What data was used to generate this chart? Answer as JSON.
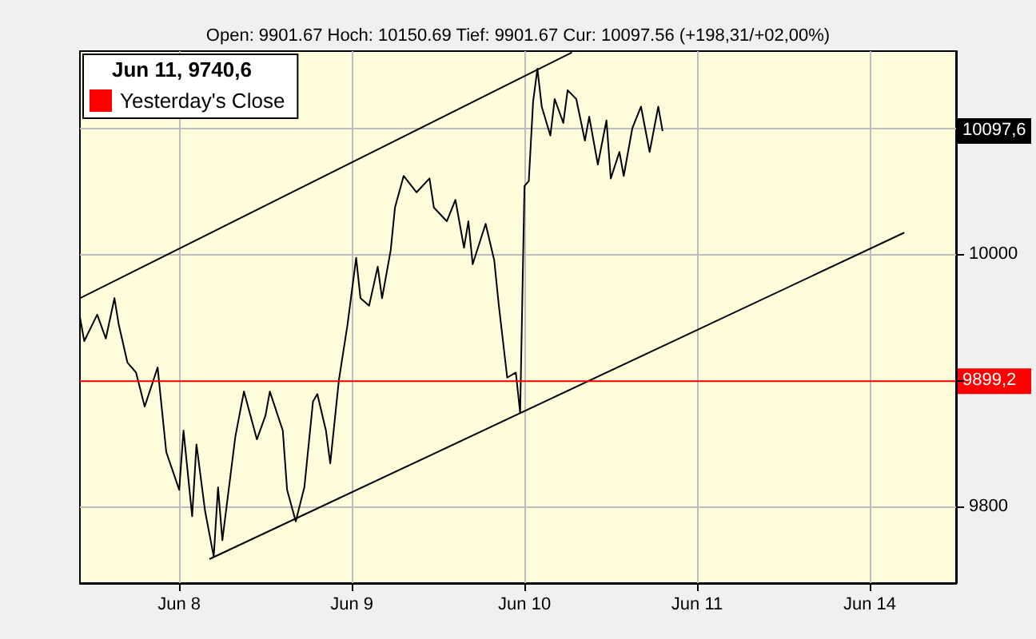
{
  "chart_data": {
    "type": "line",
    "title": "Open: 9901.67 Hoch: 10150.69 Tief: 9901.67 Cur: 10097.56 (+198,31/+02,00%)",
    "annotations": [
      "Jun 11, 9740,6",
      "10097,6",
      "9899,2"
    ],
    "categories": [
      null,
      null,
      null,
      null,
      null,
      null,
      null,
      null,
      null,
      null,
      null,
      null,
      null,
      null,
      null,
      null,
      null,
      null,
      null,
      null,
      null,
      null,
      null,
      "Jun 8",
      null,
      null,
      null,
      null,
      null,
      null,
      null,
      null,
      null,
      null,
      null,
      null,
      null,
      null,
      null,
      null,
      null,
      null,
      null,
      null,
      null,
      null,
      null,
      null,
      null,
      null,
      null,
      null,
      null,
      null,
      null,
      null,
      null,
      null,
      null,
      null,
      null,
      null,
      null,
      "Jun 9",
      null,
      null,
      null,
      null,
      null,
      null,
      null,
      null,
      null,
      null,
      null,
      null,
      null,
      null,
      null,
      null,
      null,
      null,
      null,
      null,
      null,
      null,
      null,
      null,
      null,
      null,
      null,
      null,
      null,
      null,
      null,
      null,
      null,
      null,
      null,
      null,
      null,
      null,
      null,
      "Jun 10",
      null,
      null,
      null,
      null,
      null,
      null,
      null,
      null,
      null,
      null,
      null,
      null,
      null,
      null,
      null,
      null,
      null,
      null,
      null,
      null,
      null,
      null,
      null,
      null,
      null,
      null,
      null,
      null,
      null,
      null,
      null,
      null,
      null,
      null,
      null,
      null,
      null,
      null,
      null,
      "Jun 11",
      null,
      null,
      null,
      null,
      null,
      null,
      null,
      null,
      null,
      null,
      null,
      null,
      null,
      null,
      null,
      null,
      null,
      null,
      null,
      null,
      null,
      null,
      null,
      null,
      null,
      null,
      null,
      null,
      null,
      null,
      null,
      null,
      null,
      null,
      null,
      null,
      null,
      null,
      null,
      "Jun 14",
      null,
      null,
      null,
      null,
      null,
      null,
      null,
      null,
      null,
      null,
      null,
      null,
      null,
      null,
      null,
      null,
      null,
      null,
      null,
      null
    ],
    "ylim": [
      9739,
      10161
    ],
    "yticks": [
      9800,
      {
        "value": 9900,
        "label": null
      },
      10000,
      {
        "value": 10100,
        "label": null
      }
    ],
    "grid": true,
    "legend": "top left",
    "marker": "none",
    "line_style": "solid",
    "series": [
      {
        "color": "#000000",
        "values": [
          9950,
          9931,
          null,
          null,
          9952,
          null,
          9933,
          null,
          9965,
          9944,
          null,
          9914,
          null,
          9906,
          null,
          9879,
          null,
          null,
          9910,
          null,
          9843,
          null,
          null,
          9813,
          9860,
          null,
          9792,
          9849,
          null,
          9796,
          null,
          9760,
          9815,
          9773,
          null,
          null,
          9855,
          null,
          9891,
          null,
          null,
          9853,
          null,
          9872,
          9891,
          null,
          null,
          9860,
          9813,
          null,
          9788,
          null,
          9815,
          null,
          9883,
          9889,
          null,
          9860,
          9834,
          null,
          9900,
          null,
          9944,
          null,
          9997,
          9965,
          null,
          9959,
          null,
          9990,
          9965,
          null,
          10003,
          10037,
          null,
          10062,
          null,
          null,
          10049,
          null,
          null,
          10060,
          10037,
          null,
          null,
          10026,
          null,
          10043,
          null,
          10005,
          10026,
          9992,
          null,
          null,
          10024,
          null,
          9995,
          9961,
          null,
          9902,
          null,
          9906,
          9874,
          10054,
          10058,
          10121,
          10147,
          10117,
          null,
          10094,
          10123,
          null,
          10104,
          10130,
          null,
          10123,
          null,
          10090,
          10109,
          null,
          10071,
          null,
          10106,
          10060,
          null,
          10081,
          10062,
          null,
          10100,
          null,
          10117,
          null,
          10081,
          null,
          10117,
          10097.6,
          null,
          null,
          null,
          null,
          null,
          null,
          null,
          null,
          null,
          null,
          null,
          null,
          null,
          null,
          null,
          null,
          null,
          null,
          null,
          null,
          null,
          null,
          null,
          null,
          null,
          null,
          null,
          null,
          null,
          null,
          null,
          null,
          null,
          null,
          null,
          null,
          null,
          null,
          null,
          null,
          null,
          null,
          null,
          null,
          null,
          null,
          null,
          null,
          null,
          null,
          null,
          null,
          null,
          null,
          null,
          null,
          null,
          null,
          null,
          null,
          null,
          null,
          null,
          null,
          null,
          null,
          null,
          null
        ]
      },
      {
        "color": "#000000",
        "values": [
          9965,
          null,
          null,
          null,
          null,
          null,
          null,
          null,
          null,
          null,
          null,
          null,
          null,
          null,
          null,
          null,
          null,
          null,
          null,
          null,
          null,
          null,
          null,
          null,
          null,
          null,
          null,
          null,
          null,
          null,
          null,
          null,
          null,
          null,
          null,
          null,
          null,
          null,
          null,
          null,
          null,
          null,
          null,
          null,
          null,
          null,
          null,
          null,
          null,
          null,
          null,
          null,
          null,
          null,
          null,
          null,
          null,
          null,
          null,
          null,
          null,
          null,
          null,
          null,
          null,
          null,
          null,
          null,
          null,
          null,
          null,
          null,
          null,
          null,
          null,
          null,
          null,
          null,
          null,
          null,
          null,
          null,
          null,
          null,
          null,
          null,
          null,
          null,
          null,
          null,
          null,
          null,
          null,
          null,
          null,
          null,
          null,
          null,
          null,
          null,
          null,
          null,
          null,
          null,
          null,
          null,
          null,
          null,
          null,
          null,
          null,
          null,
          null,
          null,
          10160,
          null,
          null,
          null,
          null,
          null,
          null,
          null,
          null,
          null,
          null,
          null,
          null,
          null,
          null,
          null,
          null,
          null,
          null,
          null,
          null,
          null,
          null,
          null,
          null,
          null,
          null,
          null,
          null,
          null,
          null,
          null,
          null,
          null,
          null,
          null,
          null,
          null,
          null,
          null,
          null,
          null,
          null,
          null,
          null,
          null,
          null,
          null,
          null,
          null,
          null,
          null,
          null,
          null,
          null,
          null,
          null,
          null,
          null,
          null,
          null,
          null,
          null,
          null,
          null,
          null,
          null,
          null,
          null,
          null,
          null,
          null,
          null,
          null,
          null,
          null,
          null,
          null,
          null,
          null,
          null,
          null,
          null,
          null,
          null,
          null,
          null,
          null,
          null,
          null
        ]
      },
      {
        "color": "#000000",
        "values": [
          null,
          null,
          null,
          null,
          null,
          null,
          null,
          null,
          null,
          null,
          null,
          null,
          null,
          null,
          null,
          null,
          null,
          null,
          null,
          null,
          null,
          null,
          null,
          null,
          null,
          null,
          null,
          null,
          null,
          null,
          9758,
          null,
          null,
          null,
          null,
          null,
          null,
          null,
          null,
          null,
          null,
          null,
          null,
          null,
          null,
          null,
          null,
          null,
          null,
          null,
          null,
          null,
          null,
          null,
          null,
          null,
          null,
          null,
          null,
          null,
          null,
          null,
          null,
          null,
          null,
          null,
          null,
          null,
          null,
          null,
          null,
          null,
          null,
          null,
          null,
          null,
          null,
          null,
          null,
          null,
          null,
          null,
          null,
          null,
          null,
          null,
          null,
          null,
          null,
          null,
          null,
          null,
          null,
          null,
          null,
          null,
          null,
          null,
          null,
          null,
          null,
          null,
          null,
          null,
          null,
          null,
          null,
          null,
          null,
          null,
          null,
          null,
          null,
          null,
          null,
          null,
          null,
          null,
          null,
          null,
          null,
          null,
          null,
          null,
          null,
          null,
          null,
          null,
          null,
          null,
          null,
          null,
          null,
          null,
          null,
          null,
          null,
          null,
          null,
          null,
          null,
          null,
          null,
          null,
          null,
          null,
          null,
          null,
          null,
          null,
          null,
          null,
          null,
          null,
          null,
          null,
          null,
          null,
          null,
          null,
          null,
          null,
          null,
          null,
          null,
          null,
          null,
          null,
          null,
          null,
          null,
          null,
          null,
          null,
          null,
          null,
          null,
          null,
          null,
          null,
          null,
          null,
          null,
          null,
          null,
          null,
          null,
          null,
          null,
          null,
          null,
          10017,
          null,
          null,
          null,
          null,
          null,
          null,
          null,
          null,
          null,
          null,
          null,
          null
        ]
      },
      {
        "name": "Yesterday's Close",
        "color": "#ff0000",
        "values": [
          9899.2,
          null,
          null,
          null,
          null,
          null,
          null,
          null,
          null,
          null,
          null,
          null,
          null,
          null,
          null,
          null,
          null,
          null,
          null,
          null,
          null,
          null,
          null,
          null,
          null,
          null,
          null,
          null,
          null,
          null,
          null,
          null,
          null,
          null,
          null,
          null,
          null,
          null,
          null,
          null,
          null,
          null,
          null,
          null,
          null,
          null,
          null,
          null,
          null,
          null,
          null,
          null,
          null,
          null,
          null,
          null,
          null,
          null,
          null,
          null,
          null,
          null,
          null,
          null,
          null,
          null,
          null,
          null,
          null,
          null,
          null,
          null,
          null,
          null,
          null,
          null,
          null,
          null,
          null,
          null,
          null,
          null,
          null,
          null,
          null,
          null,
          null,
          null,
          null,
          null,
          null,
          null,
          null,
          null,
          null,
          null,
          null,
          null,
          null,
          null,
          null,
          null,
          null,
          null,
          null,
          null,
          null,
          null,
          null,
          null,
          null,
          null,
          null,
          null,
          null,
          null,
          null,
          null,
          null,
          null,
          null,
          null,
          null,
          null,
          null,
          null,
          null,
          null,
          null,
          null,
          null,
          null,
          null,
          null,
          null,
          null,
          null,
          null,
          null,
          null,
          null,
          null,
          null,
          null,
          null,
          null,
          null,
          null,
          null,
          null,
          null,
          null,
          null,
          null,
          null,
          null,
          null,
          null,
          null,
          null,
          null,
          null,
          null,
          null,
          null,
          null,
          null,
          null,
          null,
          null,
          null,
          null,
          null,
          null,
          null,
          null,
          null,
          null,
          null,
          null,
          null,
          null,
          null,
          null,
          null,
          null,
          null,
          null,
          null,
          null,
          null,
          null,
          null,
          null,
          null,
          null,
          null,
          null,
          null,
          null,
          null,
          null,
          null,
          9899.2
        ]
      }
    ]
  }
}
